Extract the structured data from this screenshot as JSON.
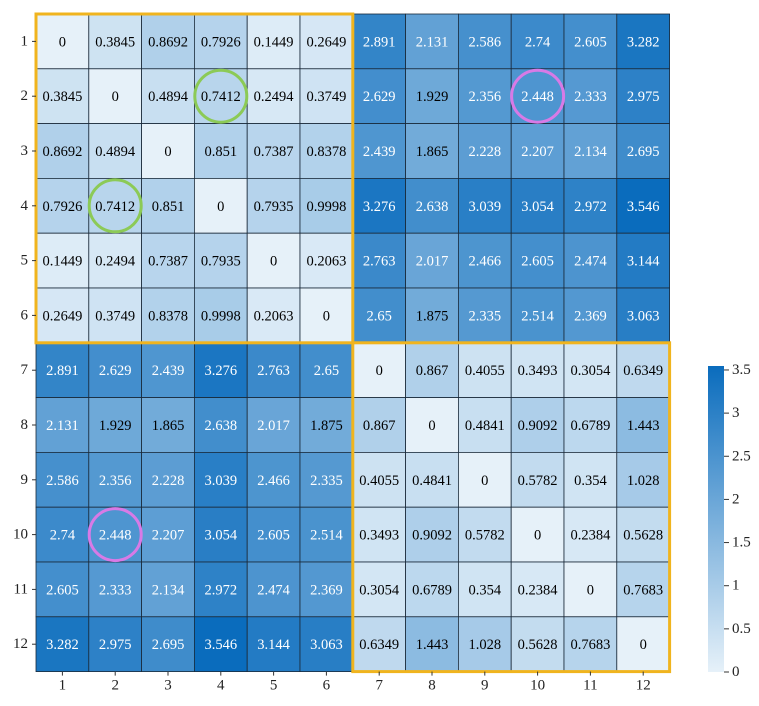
{
  "chart_data": {
    "type": "heatmap",
    "title": "",
    "xlabel": "",
    "ylabel": "",
    "x_tick_labels": [
      "1",
      "2",
      "3",
      "4",
      "5",
      "6",
      "7",
      "8",
      "9",
      "10",
      "11",
      "12"
    ],
    "y_tick_labels": [
      "1",
      "2",
      "3",
      "4",
      "5",
      "6",
      "7",
      "8",
      "9",
      "10",
      "11",
      "12"
    ],
    "value_labels": [
      [
        "0",
        "0.3845",
        "0.8692",
        "0.7926",
        "0.1449",
        "0.2649",
        "2.891",
        "2.131",
        "2.586",
        "2.74",
        "2.605",
        "3.282"
      ],
      [
        "0.3845",
        "0",
        "0.4894",
        "0.7412",
        "0.2494",
        "0.3749",
        "2.629",
        "1.929",
        "2.356",
        "2.448",
        "2.333",
        "2.975"
      ],
      [
        "0.8692",
        "0.4894",
        "0",
        "0.851",
        "0.7387",
        "0.8378",
        "2.439",
        "1.865",
        "2.228",
        "2.207",
        "2.134",
        "2.695"
      ],
      [
        "0.7926",
        "0.7412",
        "0.851",
        "0",
        "0.7935",
        "0.9998",
        "3.276",
        "2.638",
        "3.039",
        "3.054",
        "2.972",
        "3.546"
      ],
      [
        "0.1449",
        "0.2494",
        "0.7387",
        "0.7935",
        "0",
        "0.2063",
        "2.763",
        "2.017",
        "2.466",
        "2.605",
        "2.474",
        "3.144"
      ],
      [
        "0.2649",
        "0.3749",
        "0.8378",
        "0.9998",
        "0.2063",
        "0",
        "2.65",
        "1.875",
        "2.335",
        "2.514",
        "2.369",
        "3.063"
      ],
      [
        "2.891",
        "2.629",
        "2.439",
        "3.276",
        "2.763",
        "2.65",
        "0",
        "0.867",
        "0.4055",
        "0.3493",
        "0.3054",
        "0.6349"
      ],
      [
        "2.131",
        "1.929",
        "1.865",
        "2.638",
        "2.017",
        "1.875",
        "0.867",
        "0",
        "0.4841",
        "0.9092",
        "0.6789",
        "1.443"
      ],
      [
        "2.586",
        "2.356",
        "2.228",
        "3.039",
        "2.466",
        "2.335",
        "0.4055",
        "0.4841",
        "0",
        "0.5782",
        "0.354",
        "1.028"
      ],
      [
        "2.74",
        "2.448",
        "2.207",
        "3.054",
        "2.605",
        "2.514",
        "0.3493",
        "0.9092",
        "0.5782",
        "0",
        "0.2384",
        "0.5628"
      ],
      [
        "2.605",
        "2.333",
        "2.134",
        "2.972",
        "2.474",
        "2.369",
        "0.3054",
        "0.6789",
        "0.354",
        "0.2384",
        "0",
        "0.7683"
      ],
      [
        "3.282",
        "2.975",
        "2.695",
        "3.546",
        "3.144",
        "3.063",
        "0.6349",
        "1.443",
        "1.028",
        "0.5628",
        "0.7683",
        "0"
      ]
    ],
    "value_range": [
      0,
      3.546
    ],
    "colorbar": {
      "range": [
        0,
        3.5
      ],
      "tick_labels": [
        "0",
        "0.5",
        "1",
        "1.5",
        "2",
        "2.5",
        "3",
        "3.5"
      ],
      "ticks": [
        0,
        0.5,
        1,
        1.5,
        2,
        2.5,
        3,
        3.5
      ],
      "color_low": "#e6f1f9",
      "color_high": "#0a6cbd"
    },
    "highlight_blocks": [
      {
        "rows": [
          1,
          6
        ],
        "cols": [
          1,
          6
        ],
        "color": "#f0b41e"
      },
      {
        "rows": [
          7,
          12
        ],
        "cols": [
          7,
          12
        ],
        "color": "#f0b41e"
      }
    ],
    "circled_cells": [
      {
        "row": 2,
        "col": 4,
        "color": "#8cca56"
      },
      {
        "row": 4,
        "col": 2,
        "color": "#8cca56"
      },
      {
        "row": 2,
        "col": 10,
        "color": "#d87ae6"
      },
      {
        "row": 10,
        "col": 2,
        "color": "#d87ae6"
      }
    ],
    "grid": true,
    "legend": "right"
  }
}
